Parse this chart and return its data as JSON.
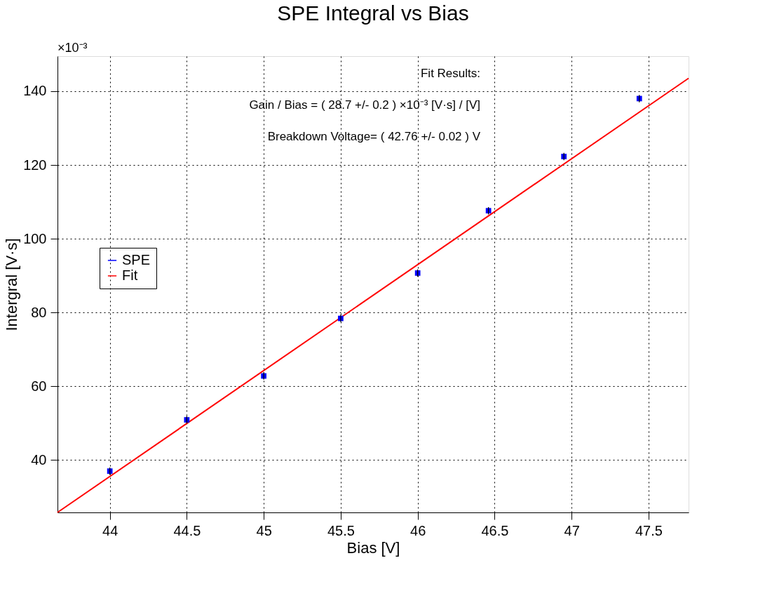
{
  "chart_data": {
    "type": "scatter",
    "title": "SPE Integral vs Bias",
    "xlabel": "Bias [V]",
    "ylabel": "Intergral [V·s]",
    "x": [
      44.0,
      44.5,
      45.0,
      45.5,
      46.0,
      46.46,
      46.95,
      47.44
    ],
    "series": [
      {
        "name": "SPE",
        "color": "#0000ff",
        "marker": "square",
        "values": [
          37.0,
          50.9,
          62.8,
          78.4,
          90.7,
          107.6,
          122.3,
          138.0
        ],
        "errors": [
          1,
          1,
          1,
          1,
          1,
          1,
          1,
          1
        ]
      },
      {
        "name": "Fit",
        "type": "line",
        "color": "#ff0000",
        "line_style": "solid",
        "x": [
          43.66,
          47.76
        ],
        "values": [
          25.8,
          143.5
        ]
      }
    ],
    "xlim": [
      43.66,
      47.76
    ],
    "ylim": [
      25.8,
      149.5
    ],
    "xticks": [
      44,
      44.5,
      45,
      45.5,
      46,
      46.5,
      47,
      47.5
    ],
    "yticks": [
      40,
      60,
      80,
      100,
      120,
      140
    ],
    "grid": true,
    "legend": "left",
    "annotations": [
      "×10⁻³",
      "Fit Results:",
      "Gain / Bias = ( 28.7 +/- 0.2 )  ×10⁻³ [V·s] / [V]",
      "Breakdown Voltage= ( 42.76 +/- 0.02 ) V"
    ]
  }
}
